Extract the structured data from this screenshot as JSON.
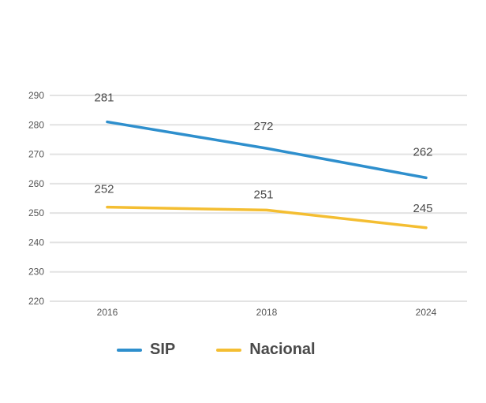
{
  "chart_data": {
    "type": "line",
    "title": "",
    "xlabel": "",
    "ylabel": "",
    "categories": [
      "2016",
      "2018",
      "2024"
    ],
    "series": [
      {
        "name": "SIP",
        "values": [
          281,
          272,
          262
        ],
        "color": "#2e8fcd"
      },
      {
        "name": "Nacional",
        "values": [
          252,
          251,
          245
        ],
        "color": "#f4be32"
      }
    ],
    "yticks": [
      220,
      230,
      240,
      250,
      260,
      270,
      280,
      290
    ],
    "ylim": [
      220,
      290
    ],
    "grid": true,
    "legend": "bottom"
  }
}
